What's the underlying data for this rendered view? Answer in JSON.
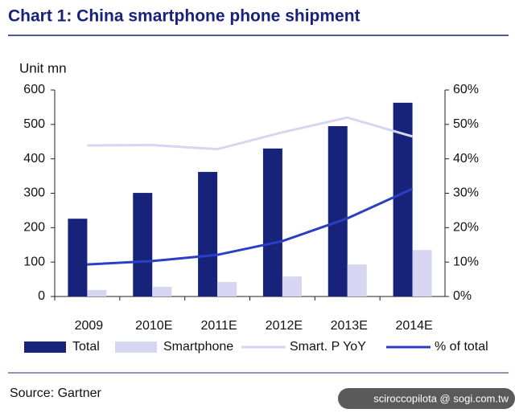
{
  "chart_data": {
    "type": "bar",
    "title": "Chart 1: China smartphone phone shipment",
    "y_axis_label": "Unit mn",
    "categories": [
      "2009",
      "2010E",
      "2011E",
      "2012E",
      "2013E",
      "2014E"
    ],
    "series": [
      {
        "name": "Total",
        "color": "#17237a",
        "type": "bar",
        "values": [
          226,
          301,
          362,
          430,
          495,
          563
        ]
      },
      {
        "name": "Smartphone",
        "color": "#d6d6f2",
        "type": "bar",
        "values": [
          19,
          28,
          42,
          58,
          93,
          135
        ]
      },
      {
        "name": "Smart. P YoY",
        "color": "#d6d6f2",
        "type": "line",
        "axis": "y2",
        "values": [
          43.9,
          44,
          42.8,
          47.7,
          52,
          46.5
        ]
      },
      {
        "name": "% of total",
        "color": "#2b3fc4",
        "type": "line",
        "axis": "y2",
        "values": [
          9.3,
          10.3,
          12.1,
          16.1,
          22.7,
          31.3
        ]
      }
    ],
    "ylim": [
      0,
      600
    ],
    "yticks": [
      0,
      100,
      200,
      300,
      400,
      500,
      600
    ],
    "y2lim": [
      0,
      60
    ],
    "y2ticks": [
      {
        "value": 0,
        "label": "0%"
      },
      {
        "value": 10,
        "label": "10%"
      },
      {
        "value": 20,
        "label": "20%"
      },
      {
        "value": 30,
        "label": "30%"
      },
      {
        "value": 40,
        "label": "40%"
      },
      {
        "value": 50,
        "label": "50%"
      },
      {
        "value": 60,
        "label": "60%"
      }
    ],
    "grid": false,
    "source": "Source: Gartner",
    "watermark": "sciroccopilota  @ sogi.com.tw"
  }
}
